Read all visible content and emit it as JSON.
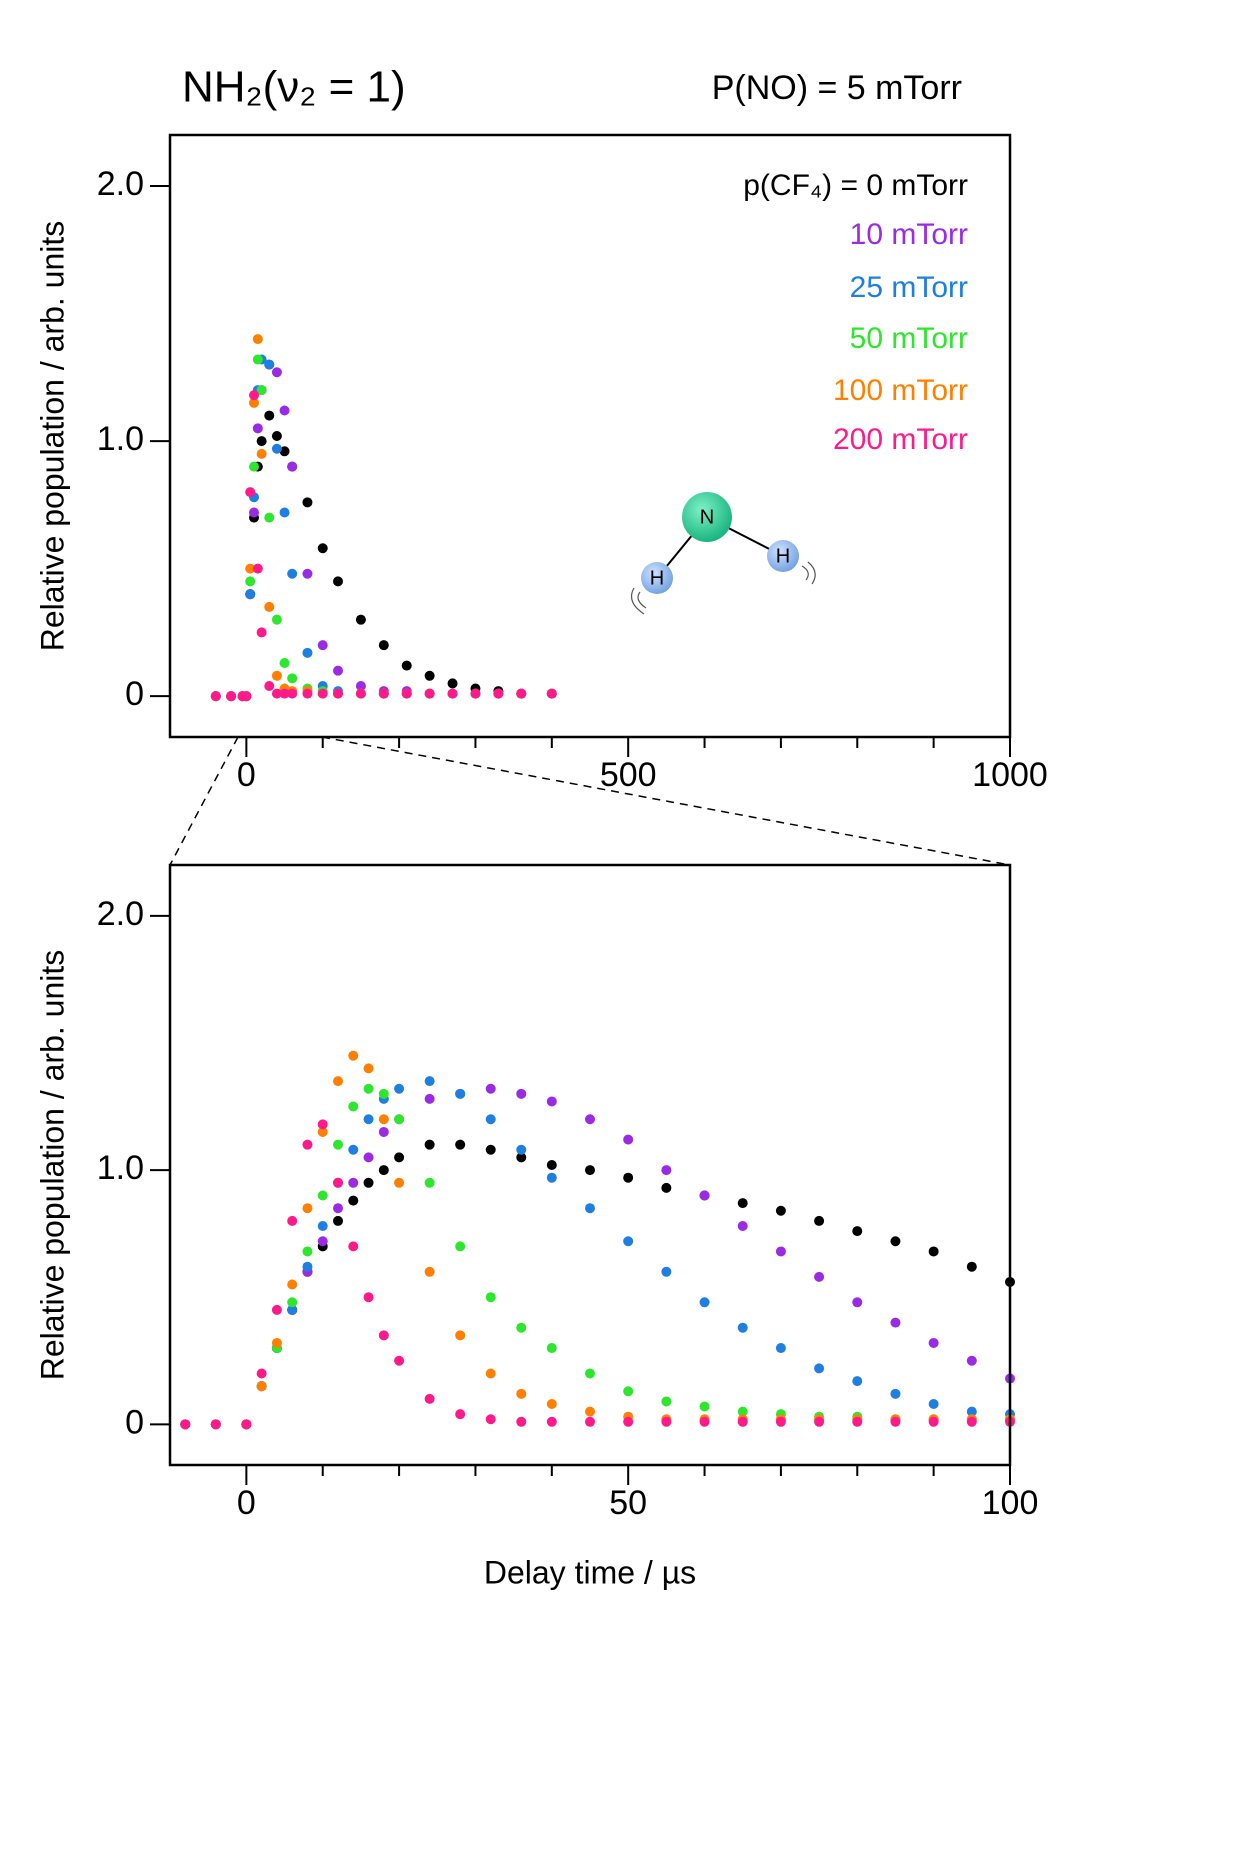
{
  "title": "NH₂(ν₂ = 1)",
  "annotation": "P(NO) = 5 mTorr",
  "molecule": {
    "atoms": [
      "N",
      "H",
      "H"
    ]
  },
  "chart_data": [
    {
      "type": "scatter",
      "y_label": "Relative population / arb. units",
      "x": [
        -40,
        -20,
        -5,
        0,
        5,
        10,
        15,
        20,
        30,
        40,
        50,
        60,
        80,
        100,
        120,
        150,
        180,
        210,
        240,
        270,
        300,
        330,
        360,
        400
      ],
      "xlim": [
        -100,
        1000
      ],
      "xticks": [
        0,
        500,
        1000
      ],
      "x_minor_ticks": [
        100,
        200,
        300,
        400,
        600,
        700,
        800,
        900
      ],
      "ylim": [
        -0.16,
        2.2
      ],
      "yticks": [
        0,
        {
          "value": 1,
          "label": "1.0"
        },
        {
          "value": 2,
          "label": "2.0"
        }
      ],
      "series": [
        {
          "name": "p(CF₄) = 0 mTorr",
          "color": "#000000",
          "values": [
            0,
            0,
            0,
            0,
            0.4,
            0.7,
            0.9,
            1.0,
            1.1,
            1.02,
            0.96,
            0.9,
            0.76,
            0.58,
            0.45,
            0.3,
            0.2,
            0.12,
            0.08,
            0.05,
            0.03,
            0.02,
            0.01,
            0.01
          ]
        },
        {
          "name": "10 mTorr",
          "color": "#9b2be3",
          "values": [
            0,
            0,
            0,
            0,
            0.4,
            0.72,
            1.05,
            1.2,
            1.3,
            1.27,
            1.12,
            0.9,
            0.48,
            0.2,
            0.1,
            0.04,
            0.02,
            0.02,
            0.01,
            0.01,
            0.01,
            0.01,
            0.01,
            0.01
          ]
        },
        {
          "name": "25 mTorr",
          "color": "#1e7fe0",
          "values": [
            0,
            0,
            0,
            0,
            0.4,
            0.78,
            1.2,
            1.32,
            1.3,
            0.97,
            0.72,
            0.48,
            0.17,
            0.04,
            0.02,
            0.01,
            0.01,
            0.01,
            0.01,
            0.01,
            0.01,
            0.01,
            0.01,
            0.01
          ]
        },
        {
          "name": "50 mTorr",
          "color": "#2ee62e",
          "values": [
            0,
            0,
            0,
            0,
            0.45,
            0.9,
            1.32,
            1.2,
            0.7,
            0.3,
            0.13,
            0.07,
            0.03,
            0.02,
            0.01,
            0.01,
            0.01,
            0.01,
            0.01,
            0.01,
            0.01,
            0.01,
            0.01,
            0.01
          ]
        },
        {
          "name": "100 mTorr",
          "color": "#ff8000",
          "values": [
            0,
            0,
            0,
            0,
            0.5,
            1.15,
            1.4,
            0.95,
            0.35,
            0.08,
            0.03,
            0.02,
            0.02,
            0.01,
            0.01,
            0.01,
            0.01,
            0.01,
            0.01,
            0.01,
            0.01,
            0.01,
            0.01,
            0.01
          ]
        },
        {
          "name": "200 mTorr",
          "color": "#ff1a8c",
          "values": [
            0,
            0,
            0,
            0,
            0.8,
            1.18,
            0.5,
            0.25,
            0.04,
            0.01,
            0.01,
            0.01,
            0.01,
            0.01,
            0.01,
            0.01,
            0.01,
            0.01,
            0.01,
            0.01,
            0.01,
            0.01,
            0.01,
            0.01
          ]
        }
      ]
    },
    {
      "type": "scatter",
      "y_label": "Relative population / arb. units",
      "x_label": "Delay time / µs",
      "x": [
        -8,
        -4,
        0,
        2,
        4,
        6,
        8,
        10,
        12,
        14,
        16,
        18,
        20,
        24,
        28,
        32,
        36,
        40,
        45,
        50,
        55,
        60,
        65,
        70,
        75,
        80,
        85,
        90,
        95,
        100
      ],
      "xlim": [
        -10,
        100
      ],
      "xticks": [
        0,
        50,
        100
      ],
      "x_minor_ticks": [
        10,
        20,
        30,
        40,
        60,
        70,
        80,
        90
      ],
      "ylim": [
        -0.16,
        2.2
      ],
      "yticks": [
        0,
        {
          "value": 1,
          "label": "1.0"
        },
        {
          "value": 2,
          "label": "2.0"
        }
      ],
      "series": [
        {
          "color": "#000000",
          "values": [
            0,
            0,
            0,
            0.15,
            0.3,
            0.45,
            0.6,
            0.7,
            0.8,
            0.88,
            0.95,
            1.0,
            1.05,
            1.1,
            1.1,
            1.08,
            1.05,
            1.02,
            1.0,
            0.97,
            0.93,
            0.9,
            0.87,
            0.84,
            0.8,
            0.76,
            0.72,
            0.68,
            0.62,
            0.56
          ]
        },
        {
          "color": "#9b2be3",
          "values": [
            0,
            0,
            0,
            0.15,
            0.3,
            0.45,
            0.6,
            0.72,
            0.85,
            0.95,
            1.05,
            1.15,
            1.2,
            1.28,
            1.3,
            1.32,
            1.3,
            1.27,
            1.2,
            1.12,
            1.0,
            0.9,
            0.78,
            0.68,
            0.58,
            0.48,
            0.4,
            0.32,
            0.25,
            0.18
          ]
        },
        {
          "color": "#1e7fe0",
          "values": [
            0,
            0,
            0,
            0.15,
            0.3,
            0.45,
            0.62,
            0.78,
            0.95,
            1.08,
            1.2,
            1.28,
            1.32,
            1.35,
            1.3,
            1.2,
            1.08,
            0.97,
            0.85,
            0.72,
            0.6,
            0.48,
            0.38,
            0.3,
            0.22,
            0.17,
            0.12,
            0.08,
            0.05,
            0.04
          ]
        },
        {
          "color": "#2ee62e",
          "values": [
            0,
            0,
            0,
            0.15,
            0.3,
            0.48,
            0.68,
            0.9,
            1.1,
            1.25,
            1.32,
            1.3,
            1.2,
            0.95,
            0.7,
            0.5,
            0.38,
            0.3,
            0.2,
            0.13,
            0.09,
            0.07,
            0.05,
            0.04,
            0.03,
            0.03,
            0.02,
            0.02,
            0.02,
            0.02
          ]
        },
        {
          "color": "#ff8000",
          "values": [
            0,
            0,
            0,
            0.15,
            0.32,
            0.55,
            0.85,
            1.15,
            1.35,
            1.45,
            1.4,
            1.2,
            0.95,
            0.6,
            0.35,
            0.2,
            0.12,
            0.08,
            0.05,
            0.03,
            0.02,
            0.02,
            0.02,
            0.02,
            0.02,
            0.02,
            0.02,
            0.02,
            0.02,
            0.02
          ]
        },
        {
          "color": "#ff1a8c",
          "values": [
            0,
            0,
            0,
            0.2,
            0.45,
            0.8,
            1.1,
            1.18,
            0.95,
            0.7,
            0.5,
            0.35,
            0.25,
            0.1,
            0.04,
            0.02,
            0.01,
            0.01,
            0.01,
            0.01,
            0.01,
            0.01,
            0.01,
            0.01,
            0.01,
            0.01,
            0.01,
            0.01,
            0.01,
            0.01
          ]
        }
      ]
    }
  ]
}
